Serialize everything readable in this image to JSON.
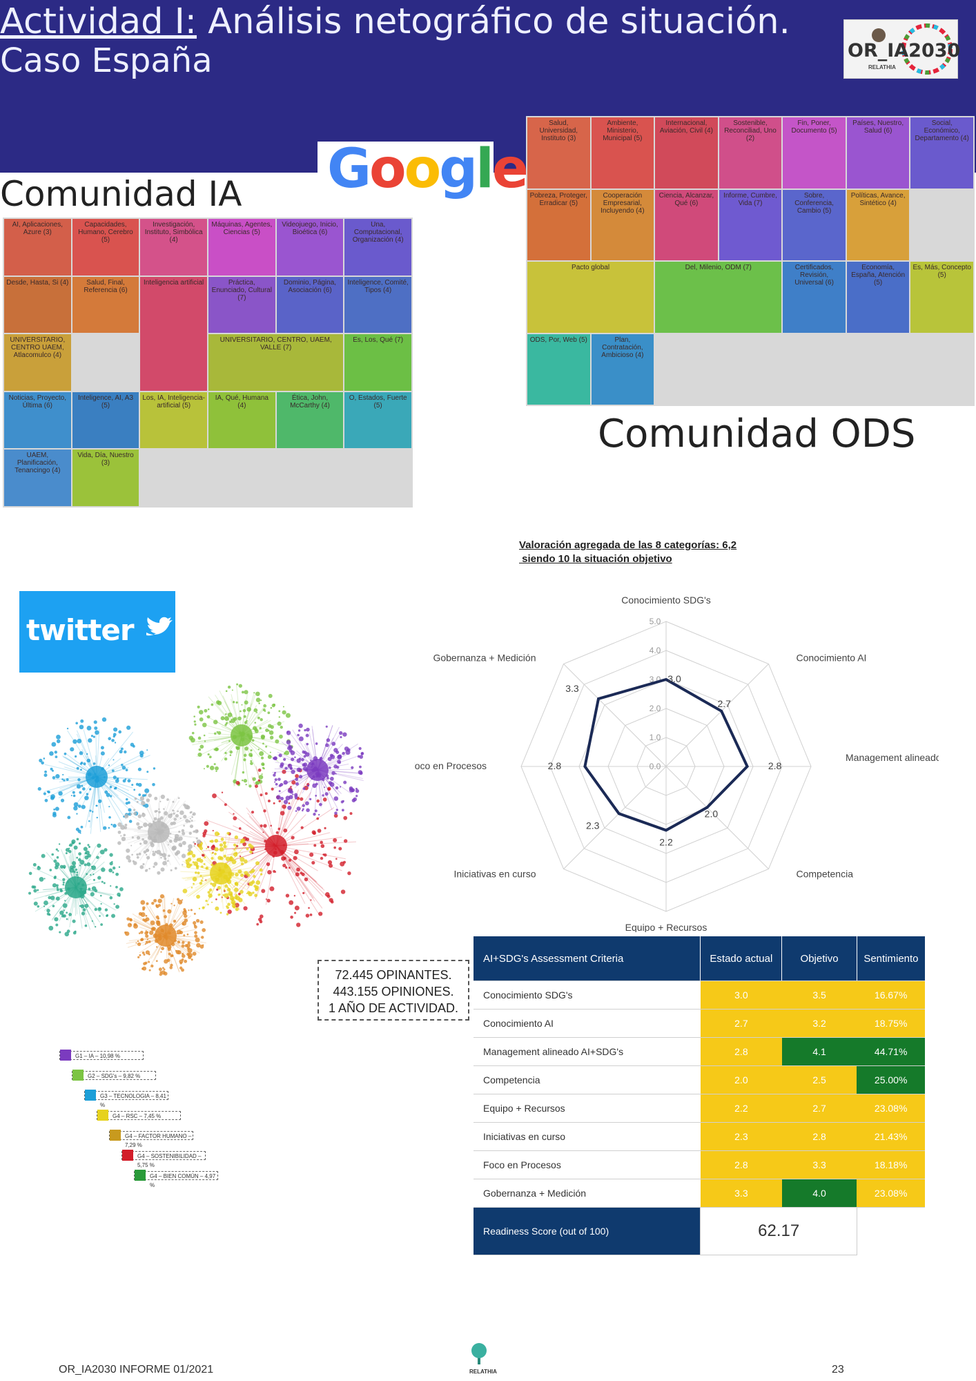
{
  "header": {
    "title_underlined": "Actividad I:",
    "title_rest": " Análisis netográfico de situación.",
    "subtitle": "Caso España",
    "logo_text": "OR_IA2030",
    "logo_sub": "RELATHIA"
  },
  "google_word": "Google",
  "community_ia_label": "Comunidad IA",
  "community_ods_label": "Comunidad ODS",
  "treemap_ia": {
    "cells": [
      {
        "label": "AI, Aplicaciones, Azure (3)",
        "color": "#d35f4a"
      },
      {
        "label": "Capacidades, Humano, Cerebro (5)",
        "color": "#d9534f"
      },
      {
        "label": "Investigación, Instituto, Simbólica (4)",
        "color": "#d4528a"
      },
      {
        "label": "Máquinas, Agentes, Ciencias (5)",
        "color": "#c94fc6"
      },
      {
        "label": "Videojuego, Inicio, Bioética (6)",
        "color": "#9a55d0"
      },
      {
        "label": "Una, Computacional, Organización (4)",
        "color": "#6a5acd"
      },
      {
        "label": "Desde, Hasta, Si (4)",
        "color": "#c8703a"
      },
      {
        "label": "Salud, Final, Referencia (6)",
        "color": "#d47a3a"
      },
      {
        "label": "Inteligencia artificial",
        "color": "#d24a6a"
      },
      {
        "label": "Práctica, Enunciado, Cultural (7)",
        "color": "#8a55c8"
      },
      {
        "label": "Dominio, Página, Asociación (6)",
        "color": "#5a63c8"
      },
      {
        "label": "Inteligence, Comité, Tipos (4)",
        "color": "#4e6fc4"
      },
      {
        "label": "UNIVERSITARIO, CENTRO UAEM, Atlacomulco (4)",
        "color": "#c9a03a"
      },
      {
        "label": "UNIVERSITARIO, CENTRO, UAEM, VALLE (7)",
        "color": "#a8b83a"
      },
      {
        "label": "Es, Los, Qué (7)",
        "color": "#6cbf45"
      },
      {
        "label": "Noticias, Proyecto, Última (6)",
        "color": "#3f8fcc"
      },
      {
        "label": "Inteligence, AI, A3 (5)",
        "color": "#3a7fc1"
      },
      {
        "label": "Los, IA, Inteligencia-artificial (5)",
        "color": "#b8c23a"
      },
      {
        "label": "IA, Qué, Humana (4)",
        "color": "#8fc13a"
      },
      {
        "label": "Ética, John, McCarthy (4)",
        "color": "#4fb86a"
      },
      {
        "label": "O, Estados, Fuerte (5)",
        "color": "#3aa8b8"
      },
      {
        "label": "UAEM, Planificación, Tenancingo (4)",
        "color": "#4a8ccc"
      },
      {
        "label": "Vida, Día, Nuestro (3)",
        "color": "#9bc23a"
      }
    ]
  },
  "treemap_ods": {
    "cells": [
      {
        "label": "Salud, Universidad, Instituto (3)",
        "color": "#d7654a"
      },
      {
        "label": "Ambiente, Ministerio, Municipal (5)",
        "color": "#d9534f"
      },
      {
        "label": "Internacional, Aviación, Civil (4)",
        "color": "#d14a5a"
      },
      {
        "label": "Sostenible, Reconciliad, Uno (2)",
        "color": "#d04f8a"
      },
      {
        "label": "Fin, Poner, Documento (5)",
        "color": "#c455c8"
      },
      {
        "label": "Países, Nuestro, Salud (6)",
        "color": "#9a55d0"
      },
      {
        "label": "Social, Económico, Departamento (4)",
        "color": "#6a5acd"
      },
      {
        "label": "Pobreza, Proteger, Erradicar (5)",
        "color": "#d4703a"
      },
      {
        "label": "Cooperación Empresarial, Incluyendo (4)",
        "color": "#d48a3a"
      },
      {
        "label": "Ciencia, Alcanzar, Qué (6)",
        "color": "#d04a7a"
      },
      {
        "label": "Informe, Cumbre, Vida (7)",
        "color": "#6f5ad0"
      },
      {
        "label": "Sobre, Conferencia, Cambio (5)",
        "color": "#5a66cc"
      },
      {
        "label": "Políticas, Avance, Sintético (4)",
        "color": "#d8a03a"
      },
      {
        "label": "Pacto global",
        "color": "#c8c23a"
      },
      {
        "label": "Del, Milenio, ODM (7)",
        "color": "#6cc04a"
      },
      {
        "label": "Certificados, Revisión, Universal (6)",
        "color": "#3f7fc8"
      },
      {
        "label": "Economía, España, Atención (5)",
        "color": "#4a6ec8"
      },
      {
        "label": "Es, Más, Concepto (5)",
        "color": "#b8c43a"
      },
      {
        "label": "ODS, Por, Web (5)",
        "color": "#3ab8a0"
      },
      {
        "label": "Plan, Contratación, Ambicioso (4)",
        "color": "#3a8fc8"
      }
    ]
  },
  "twitter_word": "twitter",
  "network_stats": [
    "72.445 OPINANTES.",
    "443.155 OPINIONES.",
    "1 AÑO DE ACTIVIDAD."
  ],
  "network_legend": [
    {
      "label": "G1 – IA – 10,98 %",
      "color": "#7b3bbf"
    },
    {
      "label": "G2 – SDG's – 9,82 %",
      "color": "#7cc443"
    },
    {
      "label": "G3 – TECNOLOGIA – 8,41 %",
      "color": "#1d9fd8"
    },
    {
      "label": "G4 – RSC – 7,45 %",
      "color": "#e6d21e"
    },
    {
      "label": "G4 – FACTOR HUMANO – 7,29 %",
      "color": "#c89a1e"
    },
    {
      "label": "G4 – SOSTENIBILIDAD – 5,75 %",
      "color": "#d21e2a"
    },
    {
      "label": "G4 – BIEN COMÚN – 4,97 %",
      "color": "#2a9a3a"
    }
  ],
  "radar": {
    "heading_line1": "Valoración agregada de las 8 categorías: 6,2",
    "heading_line2": " siendo 10 la situación objetivo",
    "tick_labels": [
      "0.0",
      "1.0",
      "2.0",
      "3.0",
      "4.0",
      "5.0"
    ],
    "axes": [
      "Conocimiento SDG's",
      "Conocimiento AI",
      "Management alineado AI+SDG's",
      "Competencia",
      "Equipo + Recursos",
      "Iniciativas en curso",
      "Foco en Procesos",
      "Gobernanza + Medición"
    ],
    "value_labels": [
      "3.0",
      "2.7",
      "2.8",
      "2.0",
      "2.2",
      "2.3",
      "2.8",
      "3.3"
    ]
  },
  "chart_data": {
    "type": "radar",
    "title": "Valoración agregada de las 8 categorías: 6,2 siendo 10 la situación objetivo",
    "categories": [
      "Conocimiento SDG's",
      "Conocimiento AI",
      "Management alineado AI+SDG's",
      "Competencia",
      "Equipo + Recursos",
      "Iniciativas en curso",
      "Foco en Procesos",
      "Gobernanza + Medición"
    ],
    "values": [
      3.0,
      2.7,
      2.8,
      2.0,
      2.2,
      2.3,
      2.8,
      3.3
    ],
    "ylim": [
      0,
      5
    ]
  },
  "table": {
    "headers": [
      "AI+SDG's Assessment Criteria",
      "Estado actual",
      "Objetivo",
      "Sentimiento"
    ],
    "rows": [
      {
        "criteria": "Conocimiento SDG's",
        "actual": "3.0",
        "objetivo": "3.5",
        "sentimiento": "16.67%",
        "obj_color": "yellow",
        "sent_color": "yellow"
      },
      {
        "criteria": "Conocimiento AI",
        "actual": "2.7",
        "objetivo": "3.2",
        "sentimiento": "18.75%",
        "obj_color": "yellow",
        "sent_color": "yellow"
      },
      {
        "criteria": "Management alineado AI+SDG's",
        "actual": "2.8",
        "objetivo": "4.1",
        "sentimiento": "44.71%",
        "obj_color": "green",
        "sent_color": "green"
      },
      {
        "criteria": "Competencia",
        "actual": "2.0",
        "objetivo": "2.5",
        "sentimiento": "25.00%",
        "obj_color": "yellow",
        "sent_color": "green"
      },
      {
        "criteria": "Equipo + Recursos",
        "actual": "2.2",
        "objetivo": "2.7",
        "sentimiento": "23.08%",
        "obj_color": "yellow",
        "sent_color": "yellow"
      },
      {
        "criteria": "Iniciativas en curso",
        "actual": "2.3",
        "objetivo": "2.8",
        "sentimiento": "21.43%",
        "obj_color": "yellow",
        "sent_color": "yellow"
      },
      {
        "criteria": "Foco en Procesos",
        "actual": "2.8",
        "objetivo": "3.3",
        "sentimiento": "18.18%",
        "obj_color": "yellow",
        "sent_color": "yellow"
      },
      {
        "criteria": "Gobernanza + Medición",
        "actual": "3.3",
        "objetivo": "4.0",
        "sentimiento": "23.08%",
        "obj_color": "green",
        "sent_color": "yellow"
      }
    ],
    "readiness_label": "Readiness Score (out of 100)",
    "readiness_value": "62.17"
  },
  "footer": {
    "left": "OR_IA2030 INFORME 01/2021",
    "center": "RELATHIA",
    "page": "23"
  }
}
